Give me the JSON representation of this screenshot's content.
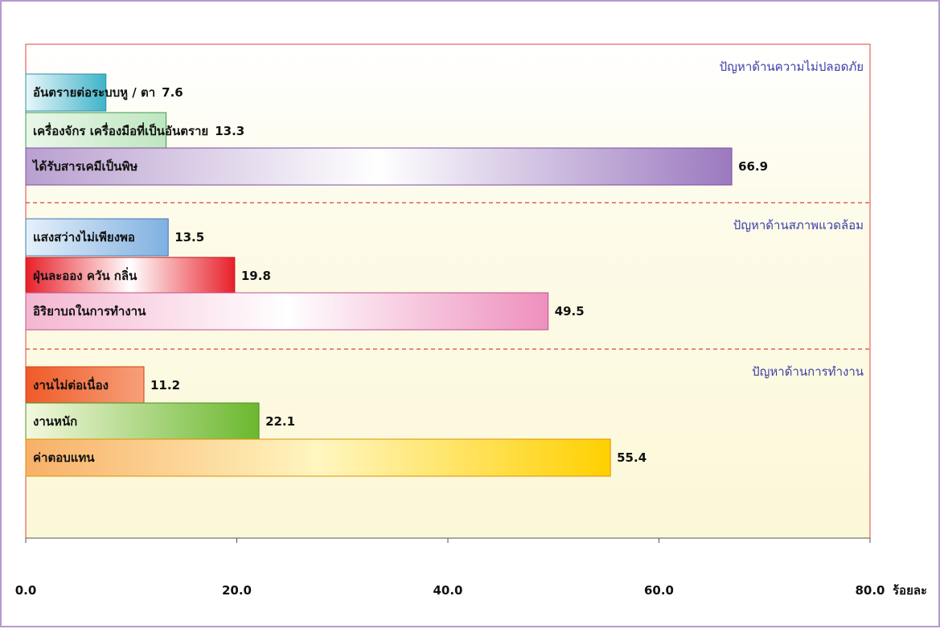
{
  "chart_data": {
    "type": "bar",
    "orientation": "horizontal",
    "unit_label": "ร้อยละ",
    "xlim": [
      0,
      80
    ],
    "x_ticks": [
      "0.0",
      "20.0",
      "40.0",
      "60.0",
      "80.0"
    ],
    "groups": [
      {
        "title": "ปัญหาด้านความไม่ปลอดภัย",
        "bars": [
          {
            "label": "อันตรายต่อระบบหู / ตา",
            "value": 7.6,
            "value_label": "7.6",
            "color_start": "#e9f7fb",
            "color_end": "#3fb3c9",
            "stroke": "#2f8fa3"
          },
          {
            "label": "เครื่องจักร เครื่องมือที่เป็นอันตราย",
            "value": 13.3,
            "value_label": "13.3",
            "color_start": "#eaf7ea",
            "color_end": "#bfe6c0",
            "stroke": "#3a9a4a"
          },
          {
            "label": "ได้รับสารเคมีเป็นพิษ",
            "value": 66.9,
            "value_label": "66.9",
            "color_start": "#b9a0d0",
            "color_end": "#9b79bf",
            "color_mid": "#ffffff",
            "stroke": "#7a4fa0"
          }
        ]
      },
      {
        "title": "ปัญหาด้านสภาพแวดล้อม",
        "bars": [
          {
            "label": "แสงสว่างไม่เพียงพอ",
            "value": 13.5,
            "value_label": "13.5",
            "color_start": "#e6f0fa",
            "color_end": "#7fb0e0",
            "stroke": "#3f79b5"
          },
          {
            "label": "ฝุ่นละออง ควัน กลิ่น",
            "value": 19.8,
            "value_label": "19.8",
            "color_start": "#e8202a",
            "color_end": "#e8202a",
            "color_mid": "#ffffff",
            "stroke": "#c01818"
          },
          {
            "label": "อิริยาบถในการทำงาน",
            "value": 49.5,
            "value_label": "49.5",
            "color_start": "#f4b6d2",
            "color_end": "#ee8fbd",
            "color_mid": "#ffffff",
            "stroke": "#c2508c"
          }
        ]
      },
      {
        "title": "ปัญหาด้านการทำงาน",
        "bars": [
          {
            "label": "งานไม่ต่อเนื่อง",
            "value": 11.2,
            "value_label": "11.2",
            "color_start": "#f05a28",
            "color_end": "#f6a07a",
            "stroke": "#d04010"
          },
          {
            "label": "งานหนัก",
            "value": 22.1,
            "value_label": "22.1",
            "color_start": "#f4f8e0",
            "color_end": "#6ab82e",
            "stroke": "#4a9020"
          },
          {
            "label": "ค่าตอบแทน",
            "value": 55.4,
            "value_label": "55.4",
            "color_start": "#f8b068",
            "color_end": "#ffd000",
            "color_mid": "#fff6c0",
            "stroke": "#e09000"
          }
        ]
      }
    ],
    "colors": {
      "group_title": "#3b3fa8",
      "separator": "#e04040",
      "plot_border": "#e04040",
      "frame_border": "#b79ad0"
    }
  }
}
